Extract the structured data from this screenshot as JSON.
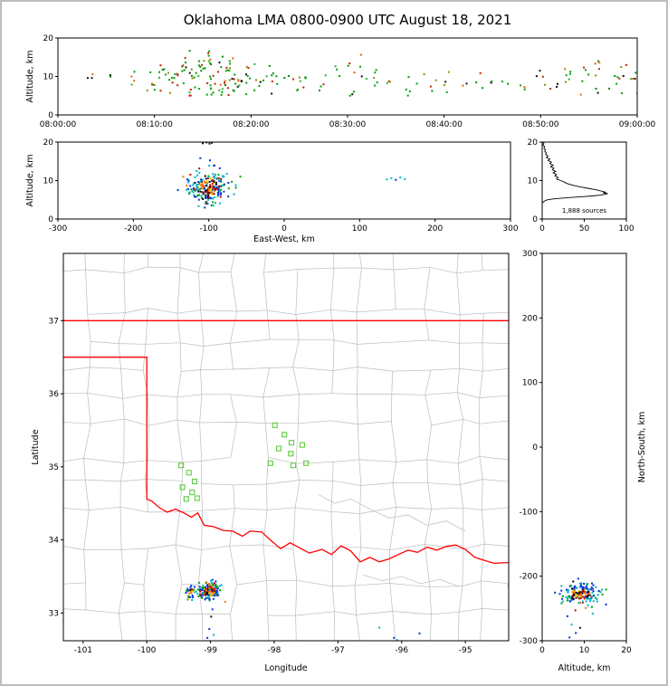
{
  "title": "Oklahoma LMA 0800-0900 UTC August 18, 2021",
  "hot_palette": [
    "#000000",
    "#c80000",
    "#f07800",
    "#e6d200",
    "#c80000",
    "#f07800",
    "#000000"
  ],
  "cool_palette": [
    "#00b4c8",
    "#0032dc",
    "#00a000",
    "#00b4c8",
    "#0032dc"
  ],
  "chart_data": [
    {
      "id": "time_height",
      "type": "scatter",
      "ylabel": "Altitude, km",
      "xlim": [
        0,
        3600
      ],
      "ylim": [
        0,
        20
      ],
      "xtick_values": [
        0,
        600,
        1200,
        1800,
        2400,
        3000,
        3600
      ],
      "xtick_labels": [
        "08:00:00",
        "08:10:00",
        "08:20:00",
        "08:30:00",
        "08:40:00",
        "08:50:00",
        "09:00:00"
      ],
      "ytick_values": [
        0,
        10,
        20
      ],
      "ytick_labels": [
        "0",
        "10",
        "20"
      ],
      "point_palette": [
        "#00a000",
        "#00a000",
        "#22b422",
        "#008c00",
        "#c81e00",
        "#e66400",
        "#111111",
        "#968c00",
        "#00a000",
        "#c81e00"
      ],
      "columns": [
        [
          3.5,
          3,
          8,
          11
        ],
        [
          5.5,
          2,
          9,
          11
        ],
        [
          8,
          4,
          7,
          12
        ],
        [
          9.5,
          5,
          6,
          12
        ],
        [
          10.5,
          6,
          6,
          13
        ],
        [
          11.2,
          4,
          8,
          15
        ],
        [
          12,
          8,
          5,
          14
        ],
        [
          12.8,
          5,
          7,
          16
        ],
        [
          13.5,
          10,
          5,
          17
        ],
        [
          14.2,
          6,
          6,
          13
        ],
        [
          15,
          9,
          5,
          16
        ],
        [
          15.6,
          12,
          4,
          17
        ],
        [
          16.2,
          8,
          6,
          15
        ],
        [
          16.8,
          10,
          5,
          16
        ],
        [
          17.4,
          7,
          6,
          14
        ],
        [
          18,
          9,
          5,
          15
        ],
        [
          18.6,
          6,
          6,
          13
        ],
        [
          19.2,
          5,
          7,
          12
        ],
        [
          20,
          7,
          5,
          14
        ],
        [
          21,
          4,
          7,
          12
        ],
        [
          22,
          6,
          5,
          13
        ],
        [
          23,
          3,
          8,
          12
        ],
        [
          24,
          2,
          9,
          11
        ],
        [
          25,
          5,
          6,
          12
        ],
        [
          26,
          3,
          7,
          11
        ],
        [
          27.5,
          4,
          6,
          12
        ],
        [
          29,
          3,
          8,
          13
        ],
        [
          30.5,
          6,
          5,
          14
        ],
        [
          31.5,
          4,
          9,
          16
        ],
        [
          33,
          5,
          6,
          12
        ],
        [
          34.5,
          3,
          7,
          11
        ],
        [
          36,
          4,
          5,
          12
        ],
        [
          37.5,
          2,
          8,
          11
        ],
        [
          39,
          3,
          6,
          11
        ],
        [
          40.5,
          4,
          5,
          12
        ],
        [
          42,
          2,
          7,
          10
        ],
        [
          43.5,
          3,
          6,
          11
        ],
        [
          45,
          2,
          8,
          11
        ],
        [
          46.5,
          2,
          7,
          10
        ],
        [
          48,
          3,
          6,
          12
        ],
        [
          50,
          4,
          7,
          13
        ],
        [
          51.5,
          3,
          5,
          11
        ],
        [
          53,
          6,
          6,
          14
        ],
        [
          54.5,
          5,
          5,
          13
        ],
        [
          56,
          7,
          5,
          14
        ],
        [
          57.5,
          4,
          6,
          12
        ],
        [
          58.5,
          5,
          5,
          13
        ],
        [
          59.6,
          6,
          4,
          12
        ]
      ],
      "seed": 11
    },
    {
      "id": "ew_height",
      "type": "scatter",
      "xlabel": "East-West, km",
      "ylabel": "Altitude, km",
      "xlim": [
        -300,
        300
      ],
      "ylim": [
        0,
        20
      ],
      "xtick_values": [
        -300,
        -200,
        -100,
        0,
        100,
        200,
        300
      ],
      "xtick_labels": [
        "-300",
        "-200",
        "-100",
        "0",
        "100",
        "200",
        "300"
      ],
      "ytick_values": [
        0,
        10,
        20
      ],
      "ytick_labels": [
        "0",
        "10",
        "20"
      ],
      "clusters": [
        {
          "cx": -100,
          "cy": 8.3,
          "sx": 13,
          "sy": 2.3,
          "n": 230
        }
      ],
      "extra_points": [
        [
          136,
          10.3,
          "#00b4c8"
        ],
        [
          142,
          10.6,
          "#00b4c8"
        ],
        [
          148,
          10.2,
          "#0032dc"
        ],
        [
          154,
          10.8,
          "#00b4c8"
        ],
        [
          160,
          10.4,
          "#00b4c8"
        ],
        [
          -108,
          19.7,
          "#111111"
        ],
        [
          -103,
          19.9,
          "#111111"
        ],
        [
          -99,
          19.6,
          "#111111"
        ],
        [
          -96,
          19.8,
          "#111111"
        ]
      ],
      "seed": 7
    },
    {
      "id": "alt_histogram",
      "type": "line",
      "annotation": "1,888 sources",
      "xlim": [
        0,
        100
      ],
      "ylim": [
        0,
        20
      ],
      "xtick_values": [
        0,
        50,
        100
      ],
      "xtick_labels": [
        "0",
        "50",
        "100"
      ],
      "ytick_values": [
        0,
        10,
        20
      ],
      "ytick_labels": [
        "0",
        "10",
        "20"
      ],
      "curve_alt_count": [
        [
          20,
          0
        ],
        [
          19.6,
          2
        ],
        [
          19.2,
          1
        ],
        [
          18.8,
          3
        ],
        [
          18.4,
          2
        ],
        [
          18,
          4
        ],
        [
          17.6,
          3
        ],
        [
          17.2,
          5
        ],
        [
          16.8,
          4
        ],
        [
          16.4,
          7
        ],
        [
          16,
          5
        ],
        [
          15.6,
          9
        ],
        [
          15.2,
          7
        ],
        [
          14.8,
          11
        ],
        [
          14.4,
          9
        ],
        [
          14,
          13
        ],
        [
          13.6,
          10
        ],
        [
          13.2,
          14
        ],
        [
          12.8,
          12
        ],
        [
          12.4,
          16
        ],
        [
          12,
          13
        ],
        [
          11.6,
          17
        ],
        [
          11.2,
          15
        ],
        [
          10.8,
          19
        ],
        [
          10.4,
          17
        ],
        [
          10,
          22
        ],
        [
          9.6,
          26
        ],
        [
          9.2,
          30
        ],
        [
          8.8,
          36
        ],
        [
          8.4,
          44
        ],
        [
          8,
          54
        ],
        [
          7.6,
          64
        ],
        [
          7.3,
          70
        ],
        [
          7,
          75
        ],
        [
          6.8,
          72
        ],
        [
          6.6,
          78
        ],
        [
          6.4,
          74
        ],
        [
          6.2,
          68
        ],
        [
          6,
          60
        ],
        [
          5.8,
          48
        ],
        [
          5.6,
          34
        ],
        [
          5.4,
          22
        ],
        [
          5.2,
          12
        ],
        [
          5,
          6
        ],
        [
          4.7,
          3
        ],
        [
          4.4,
          1
        ],
        [
          4,
          0
        ]
      ]
    },
    {
      "id": "map",
      "type": "scatter",
      "xlabel": "Longitude",
      "ylabel": "Latitude",
      "xlim": [
        -101.31,
        -94.32
      ],
      "ylim": [
        32.62,
        37.92
      ],
      "xtick_values": [
        -101,
        -100,
        -99,
        -98,
        -97,
        -96,
        -95
      ],
      "xtick_labels": [
        "-101",
        "-100",
        "-99",
        "-98",
        "-97",
        "-96",
        "-95"
      ],
      "ytick_values": [
        33,
        34,
        35,
        36,
        37
      ],
      "ytick_labels": [
        "33",
        "34",
        "35",
        "36",
        "37"
      ],
      "state_border_color": "#ff0000",
      "state_border": [
        [
          [
            -101.31,
            37
          ],
          [
            -94.32,
            37
          ]
        ],
        [
          [
            -101.31,
            36.5
          ],
          [
            -100,
            36.5
          ],
          [
            -100,
            34.56
          ],
          [
            -99.92,
            34.53
          ],
          [
            -99.8,
            34.44
          ],
          [
            -99.68,
            34.38
          ],
          [
            -99.55,
            34.42
          ],
          [
            -99.42,
            34.37
          ],
          [
            -99.3,
            34.31
          ],
          [
            -99.2,
            34.37
          ],
          [
            -99.1,
            34.2
          ],
          [
            -98.95,
            34.18
          ],
          [
            -98.8,
            34.13
          ],
          [
            -98.65,
            34.12
          ],
          [
            -98.5,
            34.05
          ],
          [
            -98.38,
            34.12
          ],
          [
            -98.2,
            34.11
          ],
          [
            -98.05,
            33.99
          ],
          [
            -97.9,
            33.88
          ],
          [
            -97.75,
            33.96
          ],
          [
            -97.6,
            33.89
          ],
          [
            -97.45,
            33.82
          ],
          [
            -97.25,
            33.87
          ],
          [
            -97.1,
            33.8
          ],
          [
            -96.95,
            33.92
          ],
          [
            -96.8,
            33.85
          ],
          [
            -96.65,
            33.7
          ],
          [
            -96.5,
            33.76
          ],
          [
            -96.35,
            33.7
          ],
          [
            -96.2,
            33.74
          ],
          [
            -96.05,
            33.8
          ],
          [
            -95.9,
            33.86
          ],
          [
            -95.75,
            33.83
          ],
          [
            -95.6,
            33.9
          ],
          [
            -95.45,
            33.86
          ],
          [
            -95.3,
            33.91
          ],
          [
            -95.15,
            33.93
          ],
          [
            -95,
            33.87
          ],
          [
            -94.85,
            33.76
          ],
          [
            -94.7,
            33.72
          ],
          [
            -94.55,
            33.68
          ],
          [
            -94.32,
            33.69
          ]
        ]
      ],
      "county_lines": {
        "seed": 5,
        "lon_step": 0.47,
        "lat_step": 0.44,
        "color": "#bcbcbc"
      },
      "rivers": [
        [
          [
            -97.3,
            34.62
          ],
          [
            -97.05,
            34.5
          ],
          [
            -96.8,
            34.56
          ],
          [
            -96.5,
            34.42
          ],
          [
            -96.2,
            34.3
          ],
          [
            -95.9,
            34.34
          ],
          [
            -95.6,
            34.2
          ],
          [
            -95.3,
            34.26
          ],
          [
            -95.0,
            34.12
          ]
        ],
        [
          [
            -96.6,
            33.52
          ],
          [
            -96.3,
            33.44
          ],
          [
            -96.0,
            33.5
          ],
          [
            -95.7,
            33.4
          ],
          [
            -95.4,
            33.46
          ],
          [
            -95.1,
            33.36
          ]
        ]
      ],
      "stations": [
        [
          -97.99,
          35.57
        ],
        [
          -97.84,
          35.44
        ],
        [
          -97.73,
          35.33
        ],
        [
          -97.93,
          35.25
        ],
        [
          -97.74,
          35.18
        ],
        [
          -97.56,
          35.3
        ],
        [
          -98.06,
          35.05
        ],
        [
          -97.7,
          35.02
        ],
        [
          -97.5,
          35.05
        ],
        [
          -99.46,
          35.02
        ],
        [
          -99.34,
          34.92
        ],
        [
          -99.25,
          34.8
        ],
        [
          -99.44,
          34.72
        ],
        [
          -99.29,
          34.65
        ],
        [
          -99.38,
          34.56
        ],
        [
          -99.21,
          34.57
        ]
      ],
      "station_color": "#5fcb3f",
      "clusters": [
        {
          "cx": -99.02,
          "cy": 33.3,
          "sx": 0.1,
          "sy": 0.06,
          "n": 170
        },
        {
          "cx": -99.3,
          "cy": 33.28,
          "sx": 0.05,
          "sy": 0.04,
          "n": 30
        }
      ],
      "extra_points": [
        [
          -98.97,
          33.05,
          "#0032dc"
        ],
        [
          -98.99,
          32.95,
          "#111111"
        ],
        [
          -99.02,
          32.78,
          "#0032dc"
        ],
        [
          -98.95,
          32.7,
          "#00b4c8"
        ],
        [
          -99.05,
          32.66,
          "#0032dc"
        ],
        [
          -96.12,
          32.66,
          "#0032dc"
        ],
        [
          -96.07,
          32.63,
          "#00b4c8"
        ],
        [
          -95.72,
          32.72,
          "#0032dc"
        ],
        [
          -96.35,
          32.8,
          "#00b4c8"
        ]
      ],
      "seed": 21
    },
    {
      "id": "ns_height",
      "type": "scatter",
      "xlabel": "Altitude, km",
      "ylabel": "North-South, km",
      "xlim": [
        0,
        20
      ],
      "ylim": [
        -300,
        300
      ],
      "xtick_values": [
        0,
        10,
        20
      ],
      "xtick_labels": [
        "0",
        "10",
        "20"
      ],
      "ytick_values": [
        -300,
        -200,
        -100,
        0,
        100,
        200,
        300
      ],
      "ytick_labels": [
        "-300",
        "-200",
        "-100",
        "0",
        "100",
        "200",
        "300"
      ],
      "clusters": [
        {
          "cx": 9,
          "cy": -228,
          "sx": 2.4,
          "sy": 9,
          "n": 170
        }
      ],
      "extra_points": [
        [
          6,
          -262,
          "#0032dc"
        ],
        [
          7,
          -275,
          "#00b4c8"
        ],
        [
          8,
          -288,
          "#0032dc"
        ],
        [
          6.5,
          -295,
          "#0032dc"
        ],
        [
          9,
          -280,
          "#111111"
        ],
        [
          12,
          -258,
          "#00b4c8"
        ]
      ],
      "seed": 13
    }
  ]
}
